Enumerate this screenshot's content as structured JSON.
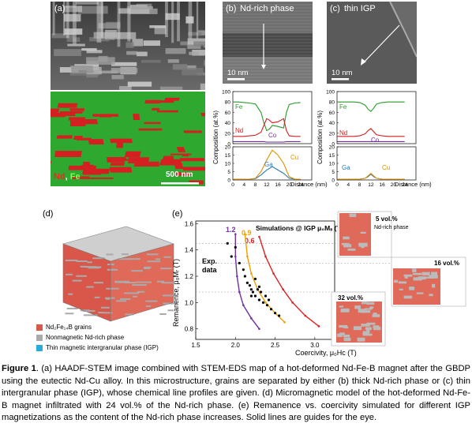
{
  "panel_a": {
    "label": "(a)",
    "map_labels": {
      "nd": "Nd",
      "sep": ", ",
      "fe": "Fe"
    },
    "scale_bar": "500 nm",
    "colors": {
      "fe": "#2fa82f",
      "nd": "#d42020"
    }
  },
  "panel_b": {
    "label": "(b)",
    "title": "Nd-rich phase",
    "scale_bar": "10 nm",
    "profile": {
      "ylabel": "Composition (at.%)",
      "xlabel": "Distance (nm)",
      "top": {
        "ylim": [
          0,
          100
        ],
        "yticks": [
          "0",
          "20",
          "40",
          "60",
          "80",
          "100"
        ],
        "labels": {
          "fe": "Fe",
          "nd": "Nd",
          "co": "Co"
        }
      },
      "bottom": {
        "ylim": [
          0,
          20
        ],
        "yticks": [
          "0",
          "5",
          "10",
          "15",
          "20"
        ],
        "labels": {
          "ga": "Ga",
          "cu": "Cu"
        }
      },
      "xticks": [
        "0",
        "4",
        "8",
        "12",
        "16",
        "20",
        "24"
      ]
    }
  },
  "panel_c": {
    "label": "(c)",
    "title": "thin IGP",
    "scale_bar": "10 nm",
    "profile": {
      "ylabel": "Composition (at.%)",
      "xlabel": "Distance (nm)",
      "top": {
        "ylim": [
          0,
          100
        ],
        "yticks": [
          "0",
          "20",
          "40",
          "60",
          "80",
          "100"
        ],
        "labels": {
          "fe": "Fe",
          "nd": "Nd",
          "co": "Co"
        }
      },
      "bottom": {
        "ylim": [
          0,
          20
        ],
        "yticks": [
          "0",
          "5",
          "10",
          "15",
          "20"
        ],
        "labels": {
          "ga": "Ga",
          "cu": "Cu"
        }
      },
      "xticks": [
        "0",
        "4",
        "8",
        "12",
        "16",
        "20",
        "24"
      ]
    }
  },
  "panel_d": {
    "label": "(d)",
    "legend": [
      {
        "text": "Nd₂Fe₁₄B grains",
        "color": "#d9574a"
      },
      {
        "text": "Nonmagnetic Nd-rich phase",
        "color": "#aaaaaa"
      },
      {
        "text": "Thin magnetic intergranular phase (IGP)",
        "color": "#2aa8e0"
      }
    ]
  },
  "panel_e": {
    "label": "(e)",
    "title": "Simulations @ IGP μ₀Mₛ (T)",
    "exp_label": "Exp.\ndata",
    "ylabel": "Remanence, μ₀Mᵣ (T)",
    "xlabel": "Coercivity, μ₀Hᴄ (T)",
    "yticks": [
      "0.8",
      "1.0",
      "1.2",
      "1.4",
      "1.6"
    ],
    "xticks": [
      "1.5",
      "2.0",
      "2.5",
      "3.0"
    ],
    "ms_labels": [
      {
        "text": "1.2",
        "color": "#7030a0"
      },
      {
        "text": "0.9",
        "color": "#f0a000"
      },
      {
        "text": "0.6",
        "color": "#e02020"
      }
    ],
    "insets": [
      {
        "text": "5 vol.%",
        "sub": "Nd-rich phase"
      },
      {
        "text": "16 vol.%",
        "sub": ""
      },
      {
        "text": "32 vol.%",
        "sub": ""
      }
    ]
  },
  "chart_data": [
    {
      "type": "line",
      "chart": "b-top",
      "x": [
        0,
        2,
        4,
        6,
        8,
        10,
        11,
        12,
        13,
        14,
        16,
        18,
        19,
        20,
        22,
        24
      ],
      "series": [
        {
          "name": "Fe",
          "values": [
            80,
            80,
            79,
            78,
            76,
            60,
            40,
            25,
            28,
            35,
            33,
            30,
            60,
            75,
            78,
            79
          ]
        },
        {
          "name": "Nd",
          "values": [
            14,
            14,
            14,
            15,
            16,
            22,
            35,
            48,
            45,
            40,
            42,
            48,
            25,
            15,
            14,
            14
          ]
        },
        {
          "name": "Co",
          "values": [
            4,
            4,
            4,
            4,
            4,
            4,
            4,
            3,
            3,
            3,
            3,
            3,
            4,
            4,
            4,
            4
          ]
        }
      ],
      "ylim": [
        0,
        100
      ]
    },
    {
      "type": "line",
      "chart": "b-bottom",
      "x": [
        0,
        2,
        4,
        6,
        8,
        10,
        12,
        14,
        16,
        18,
        20,
        22,
        24
      ],
      "series": [
        {
          "name": "Ga",
          "values": [
            0.5,
            0.5,
            0.5,
            0.5,
            0.8,
            3,
            6,
            8,
            6,
            4,
            1,
            0.5,
            0.5
          ]
        },
        {
          "name": "Cu",
          "values": [
            0.5,
            0.5,
            0.5,
            0.5,
            1,
            5,
            12,
            18,
            15,
            10,
            2,
            0.5,
            0.5
          ]
        }
      ],
      "ylim": [
        0,
        20
      ]
    },
    {
      "type": "line",
      "chart": "c-top",
      "x": [
        0,
        2,
        4,
        6,
        8,
        10,
        11,
        12,
        13,
        14,
        16,
        18,
        20,
        22,
        24
      ],
      "series": [
        {
          "name": "Fe",
          "values": [
            80,
            80,
            80,
            80,
            79,
            74,
            66,
            62,
            68,
            76,
            79,
            80,
            80,
            80,
            80
          ]
        },
        {
          "name": "Nd",
          "values": [
            14,
            14,
            14,
            14,
            15,
            19,
            25,
            29,
            23,
            17,
            15,
            14,
            14,
            14,
            14
          ]
        },
        {
          "name": "Co",
          "values": [
            4,
            4,
            4,
            4,
            4,
            4,
            4,
            4,
            4,
            4,
            4,
            4,
            4,
            4,
            4
          ]
        }
      ],
      "ylim": [
        0,
        100
      ]
    },
    {
      "type": "line",
      "chart": "c-bottom",
      "x": [
        0,
        2,
        4,
        6,
        8,
        10,
        11,
        12,
        13,
        14,
        16,
        18,
        20,
        22,
        24
      ],
      "series": [
        {
          "name": "Ga",
          "values": [
            0.5,
            0.5,
            0.5,
            0.5,
            0.5,
            1,
            2,
            3.5,
            2,
            1,
            0.5,
            0.5,
            0.5,
            0.5,
            0.5
          ]
        },
        {
          "name": "Cu",
          "values": [
            0.5,
            0.5,
            0.5,
            0.5,
            0.5,
            1,
            2.5,
            4,
            2.5,
            1,
            0.5,
            0.5,
            0.5,
            0.5,
            0.5
          ]
        }
      ],
      "ylim": [
        0,
        20
      ]
    },
    {
      "type": "scatter",
      "chart": "e",
      "xlim": [
        1.5,
        3.25
      ],
      "ylim": [
        0.72,
        1.62
      ],
      "scatter": {
        "name": "Exp. data",
        "x": [
          1.9,
          1.95,
          2.0,
          2.05,
          2.1,
          2.12,
          2.15,
          2.18,
          2.2,
          2.22,
          2.25,
          2.28,
          2.3,
          2.32,
          2.35,
          2.38,
          2.4,
          2.42,
          2.45,
          2.5,
          2.55,
          2.3,
          2.25,
          2.2
        ],
        "y": [
          1.45,
          1.35,
          1.42,
          1.3,
          1.25,
          1.2,
          1.15,
          1.13,
          1.1,
          1.08,
          1.05,
          1.1,
          1.02,
          1.08,
          1.0,
          1.05,
          0.98,
          1.02,
          0.95,
          0.92,
          0.9,
          1.12,
          1.18,
          1.05
        ]
      },
      "series": [
        {
          "name": "1.2",
          "x": [
            2.0,
            2.0,
            2.02,
            2.05,
            2.1,
            2.2,
            2.3
          ],
          "values": [
            1.52,
            1.35,
            1.2,
            1.08,
            0.98,
            0.88,
            0.8
          ]
        },
        {
          "name": "0.9",
          "x": [
            2.12,
            2.15,
            2.2,
            2.28,
            2.38,
            2.5,
            2.62
          ],
          "values": [
            1.52,
            1.35,
            1.22,
            1.1,
            1.0,
            0.92,
            0.85
          ]
        },
        {
          "name": "0.6",
          "x": [
            2.3,
            2.38,
            2.48,
            2.6,
            2.72,
            2.88,
            3.05
          ],
          "values": [
            1.5,
            1.35,
            1.22,
            1.1,
            1.0,
            0.9,
            0.82
          ]
        }
      ]
    }
  ],
  "caption": {
    "fig": "Figure 1",
    "text": ". (a) HAADF-STEM image combined with STEM-EDS map of a hot-deformed Nd-Fe-B magnet after the GBDP using the eutectic Nd-Cu alloy. In this microstructure, grains are separated by either (b) thick Nd-rich phase or (c) thin intergranular phase (IGP), whose chemical line profiles are given. (d) Micromagnetic model of the hot-deformed Nd-Fe-B magnet infiltrated with 24 vol.% of the Nd-rich phase. (e) Remanence vs. coercivity simulated for different IGP magnetizations as the content of the Nd-rich phase increases. Solid lines are guides for the eye."
  }
}
